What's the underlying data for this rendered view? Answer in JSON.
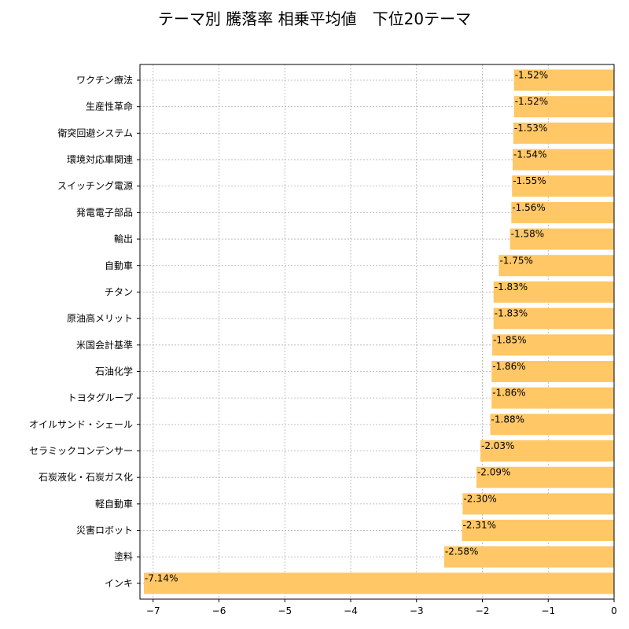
{
  "chart_data": {
    "type": "bar",
    "orientation": "horizontal",
    "title": "テーマ別 騰落率 相乗平均値　下位20テーマ",
    "xlabel": "",
    "ylabel": "",
    "xlim": [
      -7.2,
      0
    ],
    "xticks": [
      -7,
      -6,
      -5,
      -4,
      -3,
      -2,
      -1,
      0
    ],
    "xtick_labels": [
      "−7",
      "−6",
      "−5",
      "−4",
      "−3",
      "−2",
      "−1",
      "0"
    ],
    "grid": true,
    "bar_color": "#ffc766",
    "categories": [
      "ワクチン療法",
      "生産性革命",
      "衛突回避システム",
      "環境対応車関連",
      "スイッチング電源",
      "発電電子部品",
      "輸出",
      "自動車",
      "チタン",
      "原油高メリット",
      "米国会計基準",
      "石油化学",
      "トヨタグループ",
      "オイルサンド・シェール",
      "セラミックコンデンサー",
      "石炭液化・石炭ガス化",
      "軽自動車",
      "災害ロボット",
      "塗料",
      "インキ"
    ],
    "values": [
      -1.52,
      -1.52,
      -1.53,
      -1.54,
      -1.55,
      -1.56,
      -1.58,
      -1.75,
      -1.83,
      -1.83,
      -1.85,
      -1.86,
      -1.86,
      -1.88,
      -2.03,
      -2.09,
      -2.3,
      -2.31,
      -2.58,
      -7.14
    ],
    "value_labels": [
      "-1.52%",
      "-1.52%",
      "-1.53%",
      "-1.54%",
      "-1.55%",
      "-1.56%",
      "-1.58%",
      "-1.75%",
      "-1.83%",
      "-1.83%",
      "-1.85%",
      "-1.86%",
      "-1.86%",
      "-1.88%",
      "-2.03%",
      "-2.09%",
      "-2.30%",
      "-2.31%",
      "-2.58%",
      "-7.14%"
    ]
  }
}
